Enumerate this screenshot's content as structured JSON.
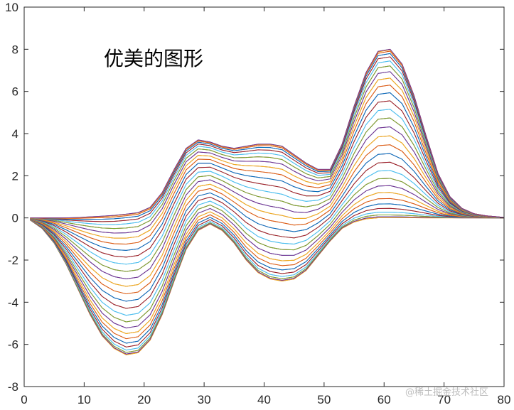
{
  "chart_data": {
    "type": "line",
    "annotation": "优美的图形",
    "watermark": "@稀土掘金技术社区",
    "xlim": [
      0,
      80
    ],
    "ylim": [
      -8,
      10
    ],
    "x_ticks": [
      0,
      10,
      20,
      30,
      40,
      50,
      60,
      70,
      80
    ],
    "y_ticks": [
      -8,
      -6,
      -4,
      -2,
      0,
      2,
      4,
      6,
      8,
      10
    ],
    "grid": false,
    "legend": "none",
    "series_count": 60,
    "x": [
      1,
      3,
      5,
      7,
      9,
      11,
      13,
      15,
      17,
      19,
      21,
      23,
      25,
      27,
      29,
      31,
      33,
      35,
      37,
      39,
      41,
      43,
      45,
      47,
      49,
      51,
      53,
      55,
      57,
      59,
      61,
      63,
      65,
      67,
      69,
      71,
      73,
      75,
      77,
      79,
      80
    ],
    "envelope_upper": [
      0,
      0,
      0,
      0,
      0.02,
      0.05,
      0.08,
      0.12,
      0.18,
      0.25,
      0.5,
      1.2,
      2.3,
      3.3,
      3.7,
      3.6,
      3.4,
      3.3,
      3.4,
      3.5,
      3.5,
      3.4,
      3.0,
      2.6,
      2.3,
      2.3,
      3.5,
      5.3,
      6.9,
      7.9,
      8.0,
      7.3,
      5.8,
      3.9,
      2.1,
      1.0,
      0.45,
      0.2,
      0.1,
      0.05,
      0.02
    ],
    "envelope_lower": [
      -0.1,
      -0.5,
      -1.2,
      -2.2,
      -3.4,
      -4.6,
      -5.6,
      -6.2,
      -6.5,
      -6.4,
      -5.8,
      -4.6,
      -3.0,
      -1.5,
      -0.6,
      -0.3,
      -0.6,
      -1.2,
      -2.0,
      -2.6,
      -2.9,
      -3.0,
      -2.9,
      -2.5,
      -1.8,
      -1.1,
      -0.5,
      -0.2,
      -0.05,
      0,
      0,
      0,
      0,
      0,
      0,
      0,
      0,
      0,
      0,
      0,
      0
    ],
    "colors": [
      "#0072BD",
      "#D95319",
      "#EDB120",
      "#7E2F8E",
      "#77AC30",
      "#4DBEEE",
      "#A2142F"
    ]
  }
}
